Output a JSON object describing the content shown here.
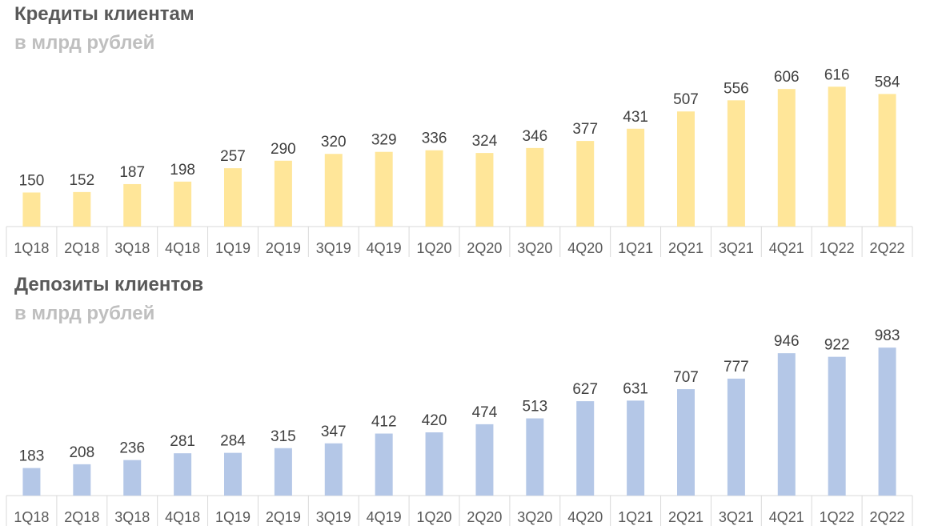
{
  "charts": [
    {
      "title": "Кредиты клиентам",
      "subtitle": "в млрд рублей",
      "color": "#ffe699"
    },
    {
      "title": "Депозиты клиентов",
      "subtitle": "в млрд рублей",
      "color": "#b4c7e7"
    }
  ],
  "chart_data": [
    {
      "type": "bar",
      "title": "Кредиты клиентам",
      "subtitle": "в млрд рублей",
      "categories": [
        "1Q18",
        "2Q18",
        "3Q18",
        "4Q18",
        "1Q19",
        "2Q19",
        "3Q19",
        "4Q19",
        "1Q20",
        "2Q20",
        "3Q20",
        "4Q20",
        "1Q21",
        "2Q21",
        "3Q21",
        "4Q21",
        "1Q22",
        "2Q22"
      ],
      "values": [
        150,
        152,
        187,
        198,
        257,
        290,
        320,
        329,
        336,
        324,
        346,
        377,
        431,
        507,
        556,
        606,
        616,
        584
      ],
      "data_labels": true,
      "grid": false,
      "legend": "none"
    },
    {
      "type": "bar",
      "title": "Депозиты клиентов",
      "subtitle": "в млрд рублей",
      "categories": [
        "1Q18",
        "2Q18",
        "3Q18",
        "4Q18",
        "1Q19",
        "2Q19",
        "3Q19",
        "4Q19",
        "1Q20",
        "2Q20",
        "3Q20",
        "4Q20",
        "1Q21",
        "2Q21",
        "3Q21",
        "4Q21",
        "1Q22",
        "2Q22"
      ],
      "values": [
        183,
        208,
        236,
        281,
        284,
        315,
        347,
        412,
        420,
        474,
        513,
        627,
        631,
        707,
        777,
        946,
        922,
        983
      ],
      "data_labels": true,
      "grid": false,
      "legend": "none"
    }
  ]
}
